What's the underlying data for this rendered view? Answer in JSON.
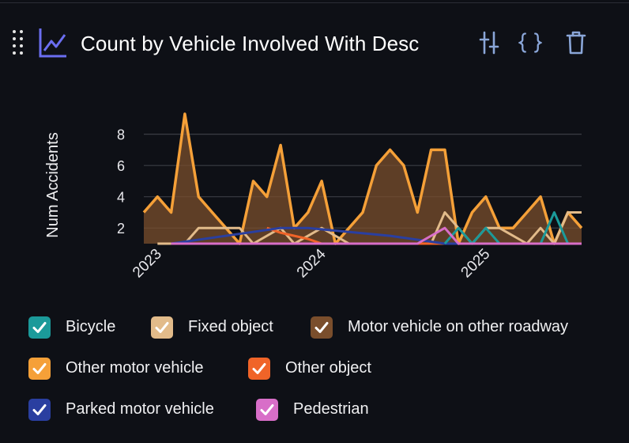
{
  "panel": {
    "title": "Count by Vehicle Involved With Desc",
    "icons": {
      "drag": "drag-handle-icon",
      "chart": "line-chart-icon",
      "settings": "sliders-icon",
      "code": "code-braces-icon",
      "delete": "trash-icon"
    }
  },
  "colors": {
    "background": "#0e1016",
    "grid": "#3a3d44",
    "accent_icon": "#6b6ef0",
    "tool_icon": "#8aa6d8"
  },
  "chart_data": {
    "type": "area",
    "title": "",
    "xlabel": "",
    "ylabel": "Num Accidents",
    "x_tick_labels": [
      "2023",
      "2024",
      "2025"
    ],
    "y_tick_labels": [
      "2",
      "4",
      "6",
      "8"
    ],
    "ylim": [
      1,
      9.5
    ],
    "xlim": [
      "2022-12",
      "2025-08"
    ],
    "grid": true,
    "legend_position": "bottom",
    "series": [
      {
        "name": "Bicycle",
        "color": "#1b9a9a",
        "points": [
          [
            "2024-10",
            1
          ],
          [
            "2024-11",
            2
          ],
          [
            "2024-12",
            1
          ],
          [
            "2025-01",
            2
          ],
          [
            "2025-02",
            1
          ],
          [
            "2025-05",
            1
          ],
          [
            "2025-06",
            3
          ],
          [
            "2025-07",
            1
          ]
        ]
      },
      {
        "name": "Fixed object",
        "color": "#e2bb8a",
        "points": [
          [
            "2023-01",
            1
          ],
          [
            "2023-03",
            1
          ],
          [
            "2023-04",
            2
          ],
          [
            "2023-07",
            2
          ],
          [
            "2023-08",
            1
          ],
          [
            "2023-10",
            2
          ],
          [
            "2023-11",
            1
          ],
          [
            "2024-01",
            2
          ],
          [
            "2024-03",
            1
          ],
          [
            "2024-09",
            1
          ],
          [
            "2024-10",
            3
          ],
          [
            "2024-11",
            2
          ],
          [
            "2024-12",
            1
          ],
          [
            "2025-01",
            2
          ],
          [
            "2025-02",
            2
          ],
          [
            "2025-04",
            1
          ],
          [
            "2025-05",
            2
          ],
          [
            "2025-06",
            1
          ],
          [
            "2025-07",
            3
          ],
          [
            "2025-08",
            3
          ]
        ]
      },
      {
        "name": "Motor vehicle on other roadway",
        "color": "#7a4e2c",
        "points": []
      },
      {
        "name": "Other motor vehicle",
        "color": "#f5a038",
        "points": [
          [
            "2022-12",
            3
          ],
          [
            "2023-01",
            4
          ],
          [
            "2023-02",
            3
          ],
          [
            "2023-03",
            9.3
          ],
          [
            "2023-04",
            4
          ],
          [
            "2023-05",
            3
          ],
          [
            "2023-06",
            2
          ],
          [
            "2023-07",
            1
          ],
          [
            "2023-08",
            5
          ],
          [
            "2023-09",
            4
          ],
          [
            "2023-10",
            7.3
          ],
          [
            "2023-11",
            2
          ],
          [
            "2023-12",
            3
          ],
          [
            "2024-01",
            5
          ],
          [
            "2024-02",
            1
          ],
          [
            "2024-03",
            2
          ],
          [
            "2024-04",
            3
          ],
          [
            "2024-05",
            6
          ],
          [
            "2024-06",
            7
          ],
          [
            "2024-07",
            6
          ],
          [
            "2024-08",
            3
          ],
          [
            "2024-09",
            7
          ],
          [
            "2024-10",
            7
          ],
          [
            "2024-11",
            1
          ],
          [
            "2024-12",
            3
          ],
          [
            "2025-01",
            4
          ],
          [
            "2025-02",
            2
          ],
          [
            "2025-03",
            2
          ],
          [
            "2025-04",
            3
          ],
          [
            "2025-05",
            4
          ],
          [
            "2025-06",
            1
          ],
          [
            "2025-07",
            3
          ],
          [
            "2025-08",
            2
          ]
        ]
      },
      {
        "name": "Other object",
        "color": "#f06428",
        "points": [
          [
            "2023-09",
            2
          ],
          [
            "2023-10",
            1.7
          ],
          [
            "2023-11",
            1.5
          ],
          [
            "2023-12",
            1.3
          ],
          [
            "2024-01",
            1
          ],
          [
            "2024-11",
            1
          ]
        ]
      },
      {
        "name": "Parked motor vehicle",
        "color": "#2a3fa0",
        "points": [
          [
            "2023-02",
            1
          ],
          [
            "2023-10",
            2
          ],
          [
            "2023-12",
            2
          ],
          [
            "2024-06",
            1.5
          ],
          [
            "2024-10",
            1
          ],
          [
            "2025-08",
            1
          ]
        ]
      },
      {
        "name": "Pedestrian",
        "color": "#d86ec8",
        "points": [
          [
            "2023-02",
            1
          ],
          [
            "2024-08",
            1
          ],
          [
            "2024-10",
            2
          ],
          [
            "2024-11",
            1
          ],
          [
            "2025-08",
            1
          ]
        ]
      }
    ]
  }
}
